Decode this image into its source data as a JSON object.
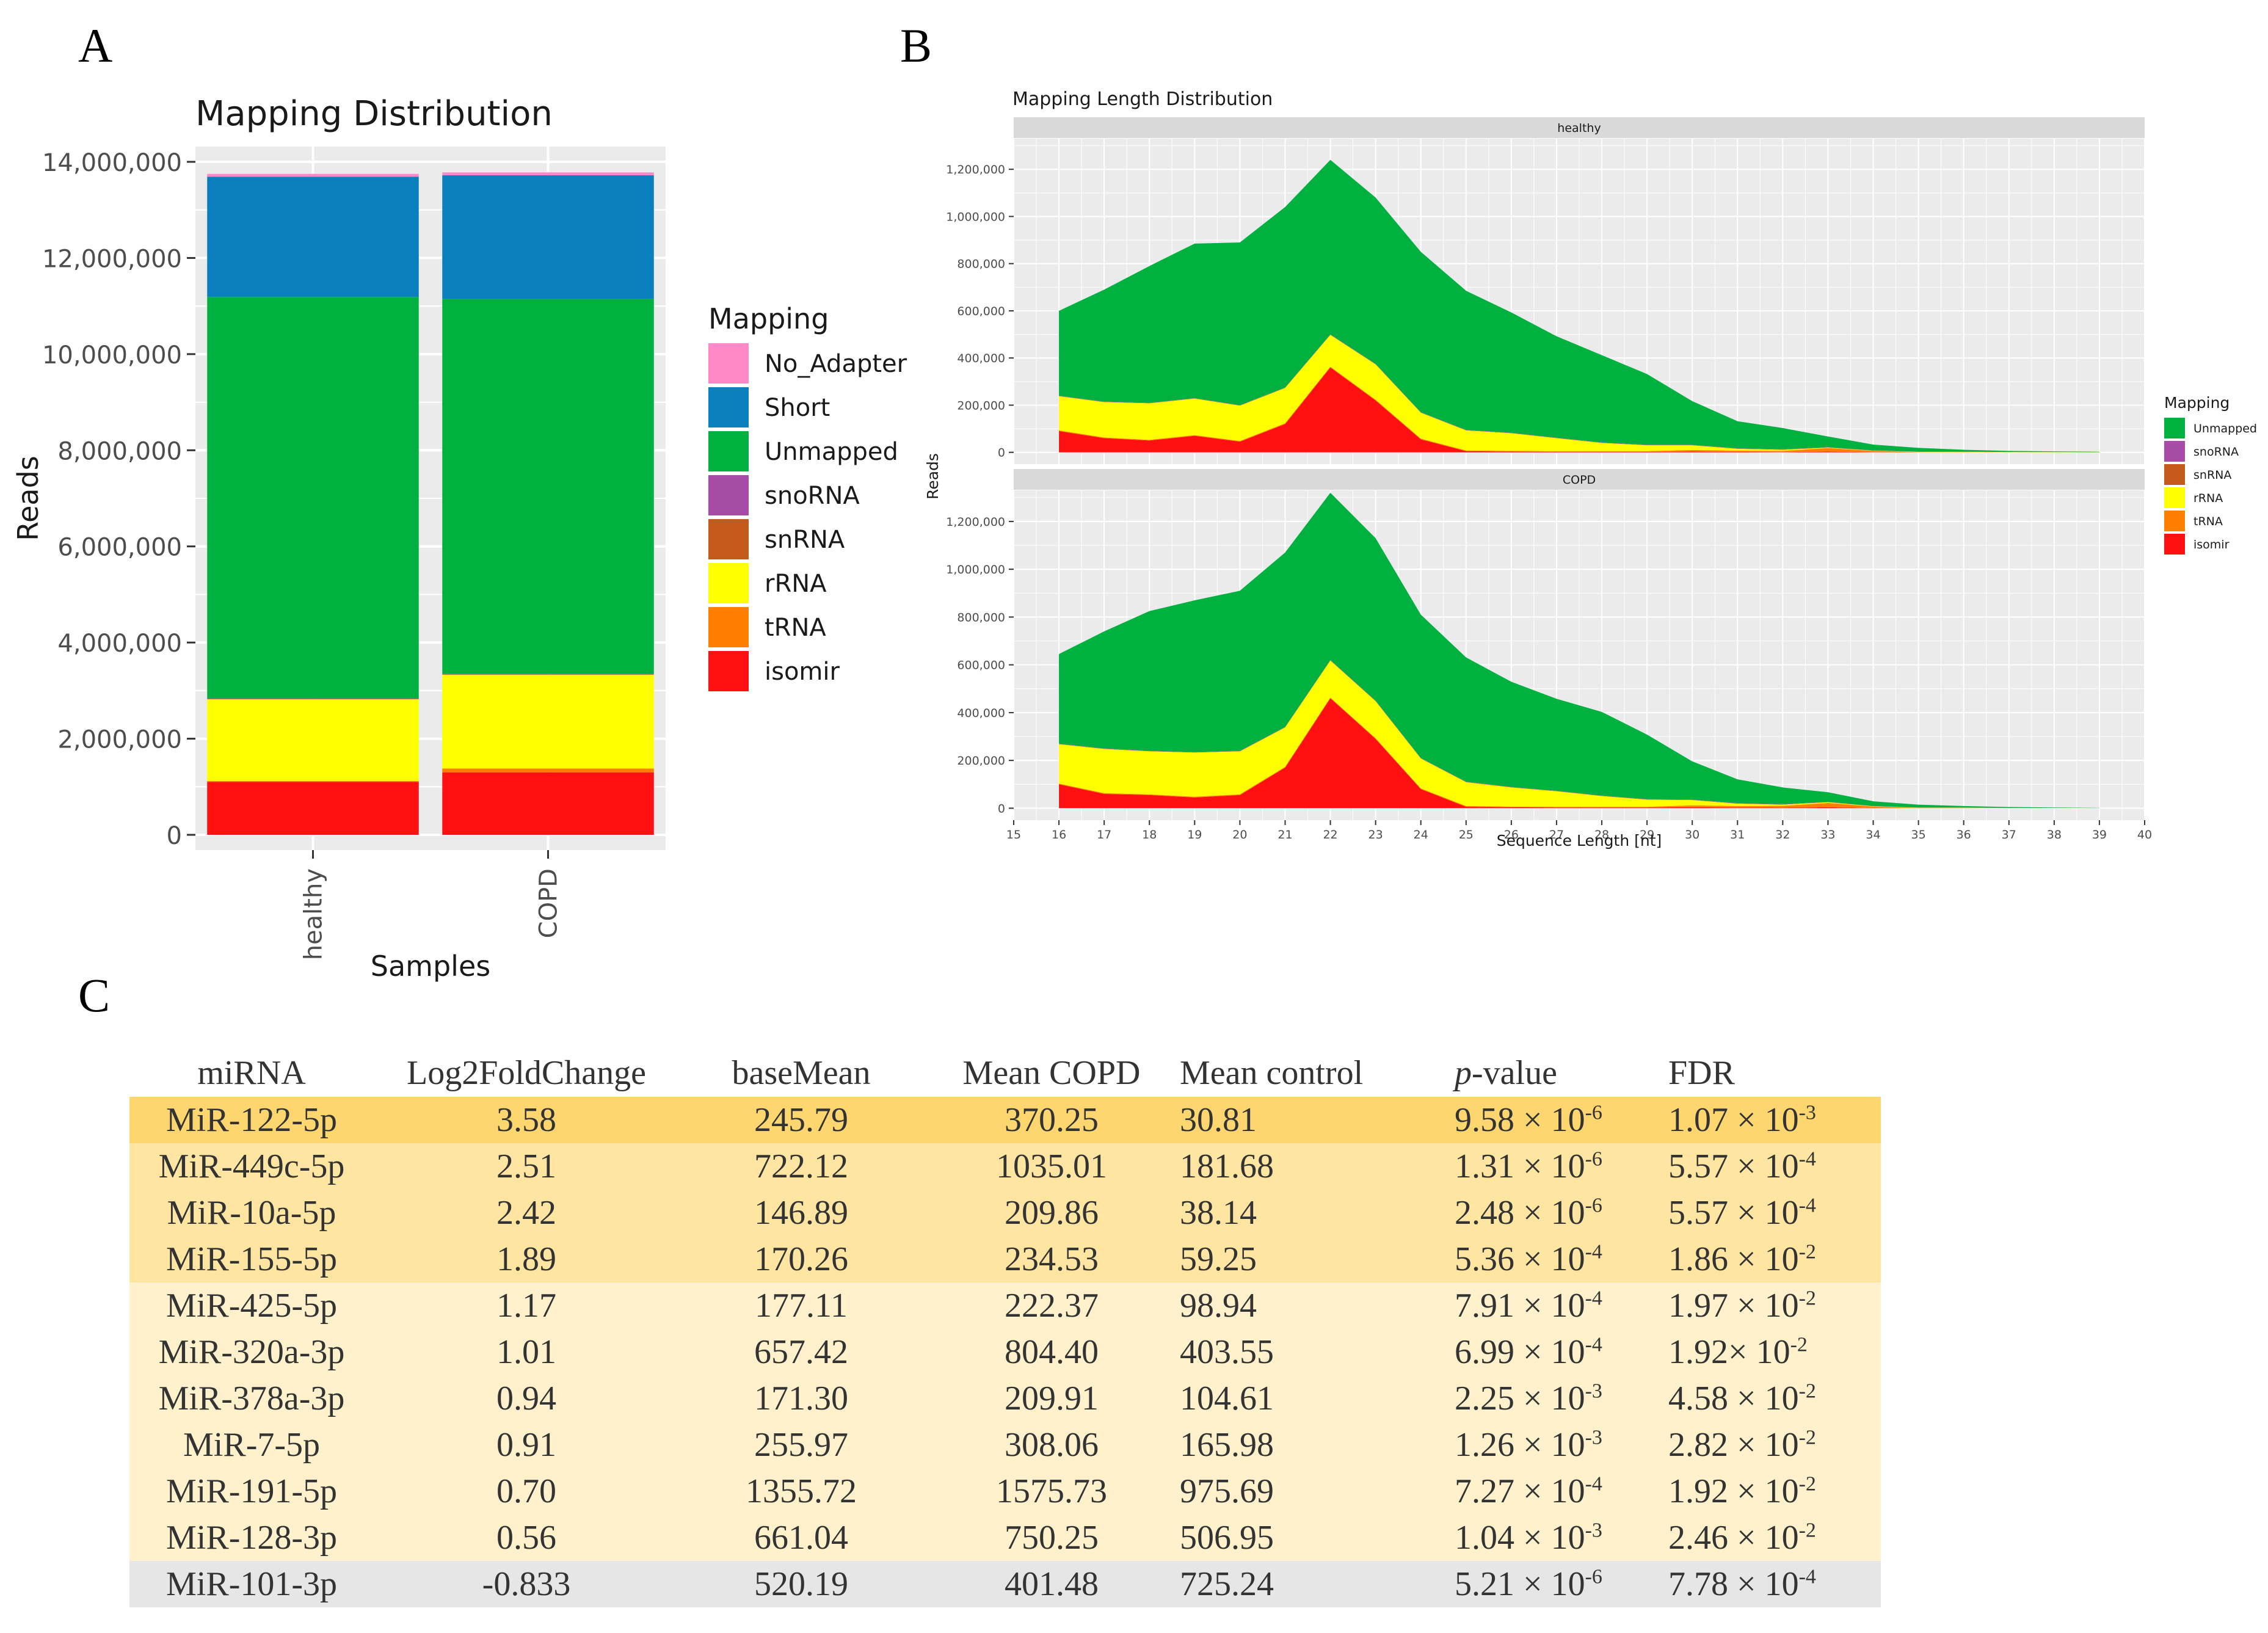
{
  "panel_labels": {
    "a": "A",
    "b": "B",
    "c": "C"
  },
  "colors": {
    "No_Adapter": "#ff88c8",
    "Short": "#0a7fbd",
    "Unmapped": "#00b140",
    "snoRNA": "#a64ca6",
    "snRNA": "#c35a1c",
    "rRNA": "#ffff00",
    "tRNA": "#ff7f00",
    "isomir": "#ff1111",
    "panel_bg": "#ebebeb",
    "strip_bg": "#d9d9d9",
    "grid": "#ffffff"
  },
  "chart_data": [
    {
      "type": "bar",
      "stacked": true,
      "title": "Mapping Distribution",
      "xlabel": "Samples",
      "ylabel": "Reads",
      "categories": [
        "healthy",
        "COPD"
      ],
      "ylim": [
        0,
        14000000
      ],
      "yticks": [
        0,
        2000000,
        4000000,
        6000000,
        8000000,
        10000000,
        12000000,
        14000000
      ],
      "ytick_labels": [
        "0",
        "2,000,000",
        "4,000,000",
        "6,000,000",
        "8,000,000",
        "10,000,000",
        "12,000,000",
        "14,000,000"
      ],
      "legend_title": "Mapping",
      "legend": [
        "No_Adapter",
        "Short",
        "Unmapped",
        "snoRNA",
        "snRNA",
        "rRNA",
        "tRNA",
        "isomir"
      ],
      "series": [
        {
          "name": "isomir",
          "values": [
            1100000,
            1300000
          ]
        },
        {
          "name": "tRNA",
          "values": [
            20000,
            80000
          ]
        },
        {
          "name": "rRNA",
          "values": [
            1700000,
            1950000
          ]
        },
        {
          "name": "snRNA",
          "values": [
            10000,
            10000
          ]
        },
        {
          "name": "snoRNA",
          "values": [
            10000,
            10000
          ]
        },
        {
          "name": "Unmapped",
          "values": [
            8350000,
            7800000
          ]
        },
        {
          "name": "Short",
          "values": [
            2500000,
            2570000
          ]
        },
        {
          "name": "No_Adapter",
          "values": [
            60000,
            60000
          ]
        }
      ]
    },
    {
      "type": "area",
      "stacked": true,
      "title": "Mapping Length Distribution",
      "xlabel": "Sequence Length [nt]",
      "ylabel": "Reads",
      "xlim": [
        15,
        40
      ],
      "xticks": [
        15,
        16,
        17,
        18,
        19,
        20,
        21,
        22,
        23,
        24,
        25,
        26,
        27,
        28,
        29,
        30,
        31,
        32,
        33,
        34,
        35,
        36,
        37,
        38,
        39,
        40
      ],
      "ylim": [
        -50000,
        1330000
      ],
      "yticks": [
        0,
        200000,
        400000,
        600000,
        800000,
        1000000,
        1200000
      ],
      "ytick_labels": [
        "0",
        "200,000",
        "400,000",
        "600,000",
        "800,000",
        "1,000,000",
        "1,200,000"
      ],
      "legend_title": "Mapping",
      "legend": [
        "Unmapped",
        "snoRNA",
        "snRNA",
        "rRNA",
        "tRNA",
        "isomir"
      ],
      "x": [
        16,
        17,
        18,
        19,
        20,
        21,
        22,
        23,
        24,
        25,
        26,
        27,
        28,
        29,
        30,
        31,
        32,
        33,
        34,
        35,
        36,
        37,
        38,
        39
      ],
      "facets": [
        {
          "name": "healthy",
          "series": [
            {
              "name": "isomir",
              "values": [
                90000,
                60000,
                50000,
                70000,
                45000,
                120000,
                360000,
                220000,
                55000,
                5000,
                3000,
                2000,
                2000,
                2000,
                3000,
                2000,
                1000,
                3000,
                1000,
                0,
                0,
                0,
                0,
                0
              ]
            },
            {
              "name": "tRNA",
              "values": [
                3000,
                3000,
                3000,
                3000,
                3000,
                3000,
                3000,
                3000,
                3000,
                3000,
                3000,
                3000,
                3000,
                3000,
                7000,
                5000,
                5000,
                15000,
                5000,
                1000,
                1000,
                0,
                0,
                0
              ]
            },
            {
              "name": "rRNA",
              "values": [
                145000,
                150000,
                155000,
                155000,
                150000,
                150000,
                135000,
                150000,
                110000,
                85000,
                75000,
                55000,
                35000,
                25000,
                20000,
                8000,
                5000,
                2000,
                1000,
                1000,
                1000,
                1000,
                1000,
                500
              ]
            },
            {
              "name": "snRNA",
              "values": [
                1000,
                1000,
                1000,
                1000,
                1000,
                1000,
                1000,
                1000,
                1000,
                1000,
                1000,
                1000,
                1000,
                1000,
                1000,
                1000,
                1000,
                1000,
                500,
                500,
                500,
                0,
                0,
                0
              ]
            },
            {
              "name": "snoRNA",
              "values": [
                1000,
                1000,
                1000,
                1000,
                1000,
                1000,
                1000,
                1000,
                1000,
                1000,
                1000,
                1000,
                1000,
                1000,
                1000,
                1000,
                1000,
                1000,
                500,
                500,
                500,
                0,
                0,
                0
              ]
            },
            {
              "name": "Unmapped",
              "values": [
                360000,
                475000,
                580000,
                655000,
                690000,
                765000,
                740000,
                705000,
                680000,
                590000,
                510000,
                430000,
                370000,
                300000,
                185000,
                115000,
                90000,
                45000,
                25000,
                16000,
                8000,
                5000,
                3000,
                2000
              ]
            }
          ]
        },
        {
          "name": "COPD",
          "series": [
            {
              "name": "isomir",
              "values": [
                100000,
                60000,
                55000,
                45000,
                55000,
                170000,
                460000,
                290000,
                80000,
                6000,
                4000,
                3000,
                3000,
                3000,
                4000,
                3000,
                2000,
                4000,
                1000,
                0,
                0,
                0,
                0,
                0
              ]
            },
            {
              "name": "tRNA",
              "values": [
                3000,
                3000,
                3000,
                3000,
                3000,
                3000,
                3000,
                3000,
                3000,
                3000,
                3000,
                3000,
                3000,
                3000,
                8000,
                6000,
                8000,
                18000,
                6000,
                1000,
                1000,
                0,
                0,
                0
              ]
            },
            {
              "name": "rRNA",
              "values": [
                165000,
                185000,
                180000,
                185000,
                180000,
                165000,
                155000,
                155000,
                125000,
                100000,
                80000,
                65000,
                45000,
                30000,
                22000,
                10000,
                5000,
                3000,
                1000,
                1000,
                1000,
                1000,
                1000,
                500
              ]
            },
            {
              "name": "snRNA",
              "values": [
                1000,
                1000,
                1000,
                1000,
                1000,
                1000,
                1000,
                1000,
                1000,
                1000,
                1000,
                1000,
                1000,
                1000,
                1000,
                1000,
                1000,
                1000,
                500,
                500,
                500,
                0,
                0,
                0
              ]
            },
            {
              "name": "snoRNA",
              "values": [
                1000,
                1000,
                1000,
                1000,
                1000,
                1000,
                1000,
                1000,
                1000,
                1000,
                1000,
                1000,
                1000,
                1000,
                1000,
                1000,
                1000,
                1000,
                500,
                500,
                500,
                0,
                0,
                0
              ]
            },
            {
              "name": "Unmapped",
              "values": [
                375000,
                490000,
                585000,
                635000,
                670000,
                730000,
                700000,
                680000,
                600000,
                520000,
                440000,
                385000,
                350000,
                270000,
                160000,
                100000,
                70000,
                40000,
                20000,
                12000,
                6000,
                4000,
                2000,
                1000
              ]
            }
          ]
        }
      ]
    },
    {
      "type": "table",
      "columns": [
        "miRNA",
        "Log2FoldChange",
        "baseMean",
        "Mean COPD",
        "Mean control",
        "p-value",
        "FDR"
      ],
      "rows": [
        [
          "MiR-122-5p",
          "3.58",
          "245.79",
          "370.25",
          "30.81",
          "9.58 × 10-6",
          "1.07 × 10-3"
        ],
        [
          "MiR-449c-5p",
          "2.51",
          "722.12",
          "1035.01",
          "181.68",
          "1.31 × 10-6",
          "5.57 × 10-4"
        ],
        [
          "MiR-10a-5p",
          "2.42",
          "146.89",
          "209.86",
          "38.14",
          "2.48 × 10-6",
          "5.57 × 10-4"
        ],
        [
          "MiR-155-5p",
          "1.89",
          "170.26",
          "234.53",
          "59.25",
          "5.36 × 10-4",
          "1.86 × 10-2"
        ],
        [
          "MiR-425-5p",
          "1.17",
          "177.11",
          "222.37",
          "98.94",
          "7.91 × 10-4",
          "1.97 × 10-2"
        ],
        [
          "MiR-320a-3p",
          "1.01",
          "657.42",
          "804.40",
          "403.55",
          "6.99 × 10-4",
          "1.92× 10-2"
        ],
        [
          "MiR-378a-3p",
          "0.94",
          "171.30",
          "209.91",
          "104.61",
          "2.25 × 10-3",
          "4.58 × 10-2"
        ],
        [
          "MiR-7-5p",
          "0.91",
          "255.97",
          "308.06",
          "165.98",
          "1.26 × 10-3",
          "2.82 × 10-2"
        ],
        [
          "MiR-191-5p",
          "0.70",
          "1355.72",
          "1575.73",
          "975.69",
          "7.27 × 10-4",
          "1.92 × 10-2"
        ],
        [
          "MiR-128-3p",
          "0.56",
          "661.04",
          "750.25",
          "506.95",
          "1.04 × 10-3",
          "2.46 × 10-2"
        ],
        [
          "MiR-101-3p",
          "-0.833",
          "520.19",
          "401.48",
          "725.24",
          "5.21 × 10-6",
          "7.78 × 10-4"
        ]
      ]
    }
  ]
}
